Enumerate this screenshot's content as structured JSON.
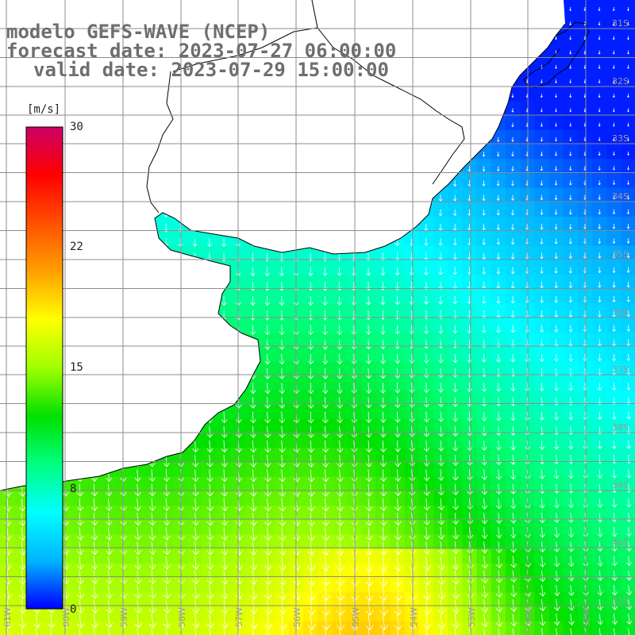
{
  "titles": {
    "line1": "modelo GEFS-WAVE (NCEP)",
    "line2": "forecast date: 2023-07-27 06:00:00",
    "line3": "valid date: 2023-07-29 15:00:00"
  },
  "colorbar": {
    "unit": "[m/s]",
    "ticks": [
      "30",
      "22",
      "15",
      "8",
      "0"
    ],
    "min": 0,
    "max": 30,
    "stops": [
      "#0000ff",
      "#00b4ff",
      "#00ffff",
      "#00ff7f",
      "#00e000",
      "#a0ff00",
      "#ffff00",
      "#ffa000",
      "#ff5000",
      "#ff0000",
      "#cc0066"
    ]
  },
  "lat_labels": [
    "31S",
    "32S",
    "33S",
    "34S",
    "35S",
    "36S",
    "37S",
    "38S",
    "39S",
    "40S",
    "41S"
  ],
  "lon_labels": [
    "61W",
    "60W",
    "59W",
    "58W",
    "57W",
    "56W",
    "55W",
    "54W",
    "53W",
    "52W",
    "51W"
  ],
  "colors": {
    "land": "#ffffff",
    "coast": "#000000",
    "grid": "#8c8c8c",
    "arrows": "#ffffff",
    "title": "#6e6e6e"
  }
}
